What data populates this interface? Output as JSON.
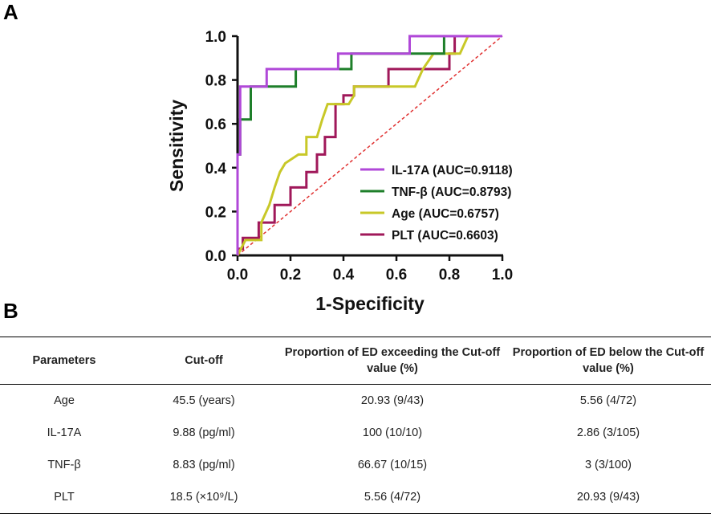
{
  "panel_labels": {
    "a": "A",
    "b": "B"
  },
  "chart_data": {
    "type": "line",
    "title": "",
    "xlabel": "1-Specificity",
    "ylabel": "Sensitivity",
    "xlim": [
      0.0,
      1.0
    ],
    "ylim": [
      0.0,
      1.0
    ],
    "xticks": [
      "0.0",
      "0.2",
      "0.4",
      "0.6",
      "0.8",
      "1.0"
    ],
    "yticks": [
      "0.0",
      "0.2",
      "0.4",
      "0.6",
      "0.8",
      "1.0"
    ],
    "legend_position": "bottom-right",
    "reference_line": {
      "name": "chance",
      "x": [
        0,
        1
      ],
      "y": [
        0,
        1
      ],
      "color": "#e03030",
      "style": "dashed"
    },
    "series": [
      {
        "name": "IL-17A (AUC=0.9118)",
        "color": "#b048d8",
        "x": [
          0,
          0,
          0.01,
          0.01,
          0.01,
          0.11,
          0.11,
          0.38,
          0.38,
          0.65,
          0.65,
          1
        ],
        "y": [
          0,
          0.46,
          0.46,
          0.77,
          0.77,
          0.77,
          0.85,
          0.85,
          0.92,
          0.92,
          1,
          1
        ]
      },
      {
        "name": "TNF-β (AUC=0.8793)",
        "color": "#1e7f2a",
        "x": [
          0,
          0,
          0.01,
          0.01,
          0.03,
          0.03,
          0.05,
          0.05,
          0.22,
          0.22,
          0.43,
          0.43,
          0.78,
          0.78,
          1
        ],
        "y": [
          0,
          0.46,
          0.46,
          0.62,
          0.62,
          0.62,
          0.62,
          0.77,
          0.77,
          0.85,
          0.85,
          0.92,
          0.92,
          1,
          1
        ]
      },
      {
        "name": "Age (AUC=0.6757)",
        "color": "#c8c828",
        "x": [
          0,
          0.03,
          0.09,
          0.09,
          0.12,
          0.14,
          0.16,
          0.18,
          0.18,
          0.23,
          0.26,
          0.26,
          0.3,
          0.32,
          0.32,
          0.34,
          0.37,
          0.42,
          0.44,
          0.44,
          0.67,
          0.7,
          0.74,
          0.84,
          0.87,
          1
        ],
        "y": [
          0,
          0.07,
          0.07,
          0.15,
          0.23,
          0.31,
          0.38,
          0.42,
          0.42,
          0.46,
          0.46,
          0.54,
          0.54,
          0.62,
          0.62,
          0.69,
          0.69,
          0.69,
          0.73,
          0.77,
          0.77,
          0.85,
          0.92,
          0.92,
          1,
          1
        ]
      },
      {
        "name": "PLT (AUC=0.6603)",
        "color": "#a0185a",
        "x": [
          0,
          0,
          0.02,
          0.02,
          0.08,
          0.08,
          0.14,
          0.14,
          0.2,
          0.2,
          0.26,
          0.26,
          0.3,
          0.3,
          0.33,
          0.33,
          0.37,
          0.37,
          0.4,
          0.4,
          0.44,
          0.44,
          0.57,
          0.57,
          0.8,
          0.8,
          0.82,
          0.82,
          1
        ],
        "y": [
          0,
          0.03,
          0.03,
          0.08,
          0.08,
          0.15,
          0.15,
          0.23,
          0.23,
          0.31,
          0.31,
          0.38,
          0.38,
          0.46,
          0.46,
          0.54,
          0.54,
          0.69,
          0.69,
          0.73,
          0.73,
          0.77,
          0.77,
          0.85,
          0.85,
          0.92,
          0.92,
          1,
          1
        ]
      }
    ]
  },
  "table": {
    "headers": [
      "Parameters",
      "Cut-off",
      "Proportion of ED exceeding the Cut-off value (%)",
      "Proportion of ED below the Cut-off value (%)"
    ],
    "rows": [
      [
        "Age",
        "45.5 (years)",
        "20.93 (9/43)",
        "5.56 (4/72)"
      ],
      [
        "IL-17A",
        "9.88 (pg/ml)",
        "100 (10/10)",
        "2.86 (3/105)"
      ],
      [
        "TNF-β",
        "8.83 (pg/ml)",
        "66.67 (10/15)",
        "3 (3/100)"
      ],
      [
        "PLT",
        "18.5 (×10⁹/L)",
        "5.56 (4/72)",
        "20.93 (9/43)"
      ]
    ]
  }
}
